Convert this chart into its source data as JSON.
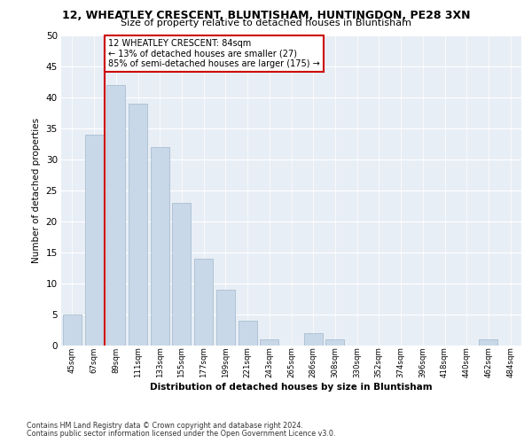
{
  "title_line1": "12, WHEATLEY CRESCENT, BLUNTISHAM, HUNTINGDON, PE28 3XN",
  "title_line2": "Size of property relative to detached houses in Bluntisham",
  "xlabel": "Distribution of detached houses by size in Bluntisham",
  "ylabel": "Number of detached properties",
  "categories": [
    "45sqm",
    "67sqm",
    "89sqm",
    "111sqm",
    "133sqm",
    "155sqm",
    "177sqm",
    "199sqm",
    "221sqm",
    "243sqm",
    "265sqm",
    "286sqm",
    "308sqm",
    "330sqm",
    "352sqm",
    "374sqm",
    "396sqm",
    "418sqm",
    "440sqm",
    "462sqm",
    "484sqm"
  ],
  "values": [
    5,
    34,
    42,
    39,
    32,
    23,
    14,
    9,
    4,
    1,
    0,
    2,
    1,
    0,
    0,
    0,
    0,
    0,
    0,
    1,
    0
  ],
  "bar_color": "#c8d8e8",
  "bar_edge_color": "#a0b8cc",
  "vline_color": "#cc0000",
  "vline_x": 1.5,
  "annotation_text": "12 WHEATLEY CRESCENT: 84sqm\n← 13% of detached houses are smaller (27)\n85% of semi-detached houses are larger (175) →",
  "annotation_box_color": "#ffffff",
  "annotation_box_edge_color": "#cc0000",
  "ylim": [
    0,
    50
  ],
  "yticks": [
    0,
    5,
    10,
    15,
    20,
    25,
    30,
    35,
    40,
    45,
    50
  ],
  "background_color": "#e8eef5",
  "footer_line1": "Contains HM Land Registry data © Crown copyright and database right 2024.",
  "footer_line2": "Contains public sector information licensed under the Open Government Licence v3.0."
}
